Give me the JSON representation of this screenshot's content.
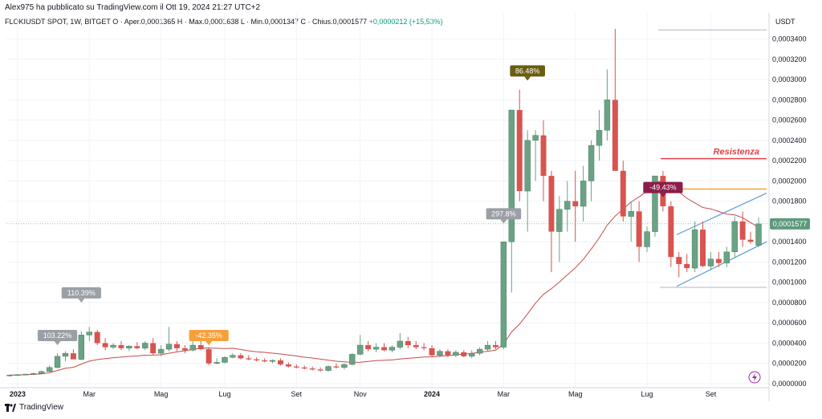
{
  "header": {
    "publisher": "Alex975 ha pubblicato su TradingView.com il Ott 19, 2024 21:27 UTC+2",
    "symbol": "FLOKIUSDT SPOT, 1W, BITGET",
    "ohlc": "O · Aper.0,0001365  H · Max.0,0001638  L · Min.0,0001347  C · Chius.0,0001577",
    "change": "+0,0000212 (+15,53%)"
  },
  "footer": {
    "brand": "TradingView"
  },
  "colors": {
    "up": "#6aa384",
    "down": "#d9534f",
    "ma": "#c94a4a",
    "channel": "#5b9bd5",
    "resistance": "#e0424a",
    "support_orange": "#f5a13a",
    "price_label": "#5e9a7c"
  },
  "chart_data": {
    "type": "candlestick",
    "title": "",
    "currency": "USDT",
    "timeframe": "1W",
    "ylim": [
      0,
      0.00035
    ],
    "y_ticks": [
      "0,0000000",
      "0,0000200",
      "0,0000400",
      "0,0000600",
      "0,0000800",
      "0,0001000",
      "0,0001200",
      "0,0001400",
      "0,0001600",
      "0,0001800",
      "0,0002000",
      "0,0002200",
      "0,0002400",
      "0,0002600",
      "0,0002800",
      "0,0003000",
      "0,0003200",
      "0,0003400"
    ],
    "x_ticks": [
      "2023",
      "Mar",
      "Mag",
      "Lug",
      "Set",
      "Nov",
      "2024",
      "Mar",
      "Mag",
      "Lug",
      "Set"
    ],
    "last_price_label": "0,0001577",
    "last_price": 0.0001577,
    "resistance_text": "Resistenza",
    "resistance_level": 0.000222,
    "orange_level": 0.000192,
    "annotations": [
      "103.22%",
      "110.39%",
      "-42.35%",
      "297.8%",
      "86.48%",
      "-49.43%"
    ],
    "candles": [
      [
        8.2e-06,
        9e-06,
        7e-06,
        8.5e-06
      ],
      [
        8.5e-06,
        9.5e-06,
        8e-06,
        8.8e-06
      ],
      [
        8.8e-06,
        1e-05,
        8.4e-06,
        9.4e-06
      ],
      [
        9.4e-06,
        1.1e-05,
        9e-06,
        1e-05
      ],
      [
        1e-05,
        1.3e-05,
        9.5e-06,
        1.2e-05
      ],
      [
        1.2e-05,
        1.8e-05,
        1.15e-05,
        1.6e-05
      ],
      [
        1.6e-05,
        3e-05,
        1.5e-05,
        2.7e-05
      ],
      [
        2.7e-05,
        3.2e-05,
        2.2e-05,
        3e-05
      ],
      [
        3e-05,
        3.4e-05,
        2.5e-05,
        2.4e-05
      ],
      [
        2.4e-05,
        5.2e-05,
        2.3e-05,
        4.8e-05
      ],
      [
        4.8e-05,
        5.6e-05,
        4.2e-05,
        5.1e-05
      ],
      [
        5.1e-05,
        5.3e-05,
        3.8e-05,
        4e-05
      ],
      [
        4e-05,
        4.5e-05,
        3.3e-05,
        3.6e-05
      ],
      [
        3.6e-05,
        4e-05,
        3.4e-05,
        3.8e-05
      ],
      [
        3.8e-05,
        4.2e-05,
        3.3e-05,
        3.5e-05
      ],
      [
        3.5e-05,
        3.8e-05,
        3.2e-05,
        3.7e-05
      ],
      [
        3.7e-05,
        4.1e-05,
        3.4e-05,
        3.5e-05
      ],
      [
        3.5e-05,
        4.2e-05,
        3.3e-05,
        4e-05
      ],
      [
        4e-05,
        4.5e-05,
        2.8e-05,
        3e-05
      ],
      [
        3e-05,
        3.8e-05,
        2.7e-05,
        3.4e-05
      ],
      [
        3.4e-05,
        5.6e-05,
        3.2e-05,
        3.9e-05
      ],
      [
        3.9e-05,
        4.2e-05,
        3.2e-05,
        3.5e-05
      ],
      [
        3.5e-05,
        3.8e-05,
        3e-05,
        3.3e-05
      ],
      [
        3.3e-05,
        4.2e-05,
        3.2e-05,
        3.8e-05
      ],
      [
        3.8e-05,
        4.2e-05,
        3.3e-05,
        3.4e-05
      ],
      [
        3.4e-05,
        3.6e-05,
        1.8e-05,
        2e-05
      ],
      [
        2e-05,
        2.5e-05,
        1.9e-05,
        2.1e-05
      ],
      [
        2.1e-05,
        2.7e-05,
        2e-05,
        2.6e-05
      ],
      [
        2.6e-05,
        3e-05,
        2.5e-05,
        2.8e-05
      ],
      [
        2.8e-05,
        3e-05,
        2.4e-05,
        2.5e-05
      ],
      [
        2.5e-05,
        2.8e-05,
        2.3e-05,
        2.4e-05
      ],
      [
        2.4e-05,
        2.6e-05,
        2.2e-05,
        2.3e-05
      ],
      [
        2.3e-05,
        2.5e-05,
        2.1e-05,
        2.2e-05
      ],
      [
        2.2e-05,
        2.4e-05,
        2e-05,
        2.3e-05
      ],
      [
        2.3e-05,
        2.5e-05,
        1.8e-05,
        1.9e-05
      ],
      [
        1.9e-05,
        2.1e-05,
        1.6e-05,
        1.7e-05
      ],
      [
        1.7e-05,
        1.9e-05,
        1.5e-05,
        1.6e-05
      ],
      [
        1.6e-05,
        1.8e-05,
        1.4e-05,
        1.5e-05
      ],
      [
        1.5e-05,
        1.7e-05,
        1.3e-05,
        1.4e-05
      ],
      [
        1.4e-05,
        1.6e-05,
        1.2e-05,
        1.3e-05
      ],
      [
        1.3e-05,
        1.8e-05,
        1.2e-05,
        1.7e-05
      ],
      [
        1.7e-05,
        2e-05,
        1.5e-05,
        1.6e-05
      ],
      [
        1.6e-05,
        2e-05,
        1.4e-05,
        1.9e-05
      ],
      [
        1.9e-05,
        3e-05,
        1.8e-05,
        2.9e-05
      ],
      [
        2.9e-05,
        4.8e-05,
        2.8e-05,
        3.8e-05
      ],
      [
        3.8e-05,
        4.2e-05,
        3.2e-05,
        3.4e-05
      ],
      [
        3.4e-05,
        4e-05,
        3.1e-05,
        3.6e-05
      ],
      [
        3.6e-05,
        4e-05,
        3.2e-05,
        3.3e-05
      ],
      [
        3.3e-05,
        3.8e-05,
        3.1e-05,
        3.6e-05
      ],
      [
        3.6e-05,
        5e-05,
        3.4e-05,
        4.2e-05
      ],
      [
        4.2e-05,
        4.6e-05,
        3.5e-05,
        3.8e-05
      ],
      [
        3.8e-05,
        4.2e-05,
        3.4e-05,
        3.6e-05
      ],
      [
        3.6e-05,
        4e-05,
        3.3e-05,
        3.5e-05
      ],
      [
        3.5e-05,
        3.8e-05,
        2.6e-05,
        2.8e-05
      ],
      [
        2.8e-05,
        3.4e-05,
        2.6e-05,
        3.2e-05
      ],
      [
        3.2e-05,
        3.4e-05,
        2.6e-05,
        2.8e-05
      ],
      [
        2.8e-05,
        3.3e-05,
        2.6e-05,
        3.1e-05
      ],
      [
        3.1e-05,
        3.3e-05,
        2.6e-05,
        2.7e-05
      ],
      [
        2.7e-05,
        3.3e-05,
        2.5e-05,
        3e-05
      ],
      [
        3e-05,
        3.6e-05,
        2.8e-05,
        3.4e-05
      ],
      [
        3.4e-05,
        4.2e-05,
        3.2e-05,
        3.8e-05
      ],
      [
        3.8e-05,
        4.2e-05,
        3.4e-05,
        3.6e-05
      ],
      [
        3.6e-05,
        0.00014,
        3.4e-05,
        0.00014
      ],
      [
        0.00014,
        0.00027,
        9e-05,
        0.00027
      ],
      [
        0.00027,
        0.00029,
        0.00018,
        0.00019
      ],
      [
        0.00019,
        0.00025,
        0.00015,
        0.00024
      ],
      [
        0.00024,
        0.00025,
        0.0002,
        0.000245
      ],
      [
        0.000245,
        0.00026,
        0.00018,
        0.000205
      ],
      [
        0.000205,
        0.00021,
        0.00011,
        0.00015
      ],
      [
        0.00015,
        0.000185,
        0.00012,
        0.000172
      ],
      [
        0.000172,
        0.0002,
        0.00015,
        0.00018
      ],
      [
        0.00018,
        0.00021,
        0.00014,
        0.000175
      ],
      [
        0.000175,
        0.000215,
        0.00016,
        0.0002
      ],
      [
        0.0002,
        0.00024,
        0.00018,
        0.000235
      ],
      [
        0.000235,
        0.00027,
        0.00022,
        0.00025
      ],
      [
        0.00025,
        0.00031,
        0.00024,
        0.00028
      ],
      [
        0.00028,
        0.00035,
        0.00021,
        0.00021
      ],
      [
        0.00021,
        0.00022,
        0.00016,
        0.000165
      ],
      [
        0.000165,
        0.00018,
        0.00014,
        0.00017
      ],
      [
        0.00017,
        0.00018,
        0.00012,
        0.000135
      ],
      [
        0.000135,
        0.000155,
        0.00013,
        0.00015
      ],
      [
        0.00015,
        0.000205,
        0.000145,
        0.000205
      ],
      [
        0.000205,
        0.00021,
        0.00017,
        0.000175
      ],
      [
        0.000175,
        0.00018,
        0.000115,
        0.000125
      ],
      [
        0.000125,
        0.00013,
        0.000105,
        0.000118
      ],
      [
        0.000118,
        0.000128,
        0.00011,
        0.000114
      ],
      [
        0.000114,
        0.00016,
        0.00011,
        0.000152
      ],
      [
        0.000152,
        0.00016,
        0.000115,
        0.000116
      ],
      [
        0.000116,
        0.00013,
        0.000112,
        0.000123
      ],
      [
        0.000123,
        0.00013,
        0.000115,
        0.000119
      ],
      [
        0.000119,
        0.000135,
        0.000115,
        0.00013
      ],
      [
        0.00013,
        0.000165,
        0.000125,
        0.00016
      ],
      [
        0.00016,
        0.00017,
        0.000135,
        0.000142
      ],
      [
        0.000142,
        0.00015,
        0.000138,
        0.00014
      ],
      [
        0.0001365,
        0.0001638,
        0.0001347,
        0.0001577
      ]
    ]
  }
}
